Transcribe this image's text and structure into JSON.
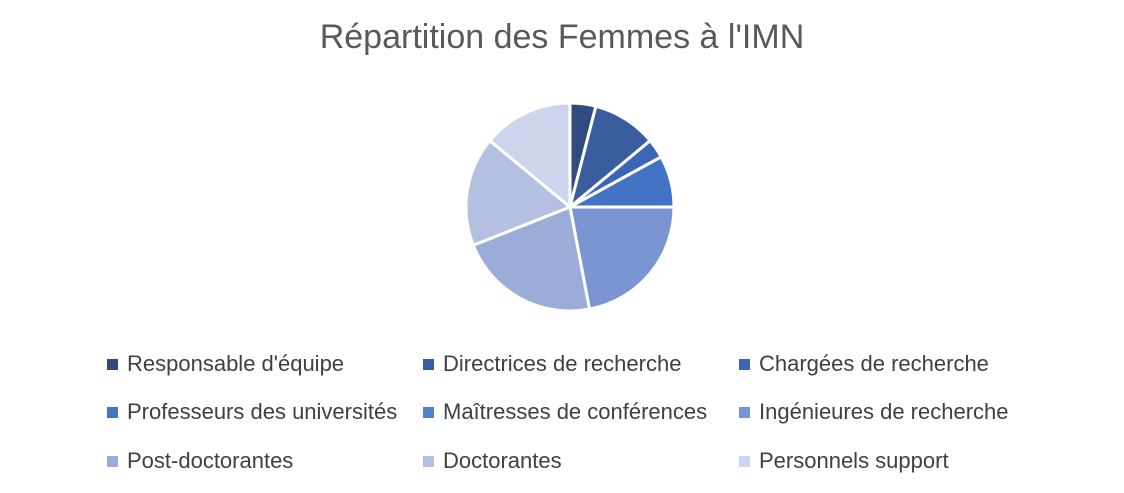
{
  "chart_data": {
    "type": "pie",
    "title": "Répartition des Femmes à l'IMN",
    "categories": [
      "Responsable d'équipe",
      "Directrices de recherche",
      "Chargées de recherche",
      "Professeurs des universités",
      "Maîtresses de conférences",
      "Ingénieures de recherche",
      "Post-doctorantes",
      "Doctorantes",
      "Personnels support"
    ],
    "values": [
      4,
      10,
      3,
      8,
      0,
      22,
      22,
      17,
      14
    ],
    "colors": [
      "#2F4B80",
      "#3A5DA0",
      "#3B66B8",
      "#4472C4",
      "#5580CC",
      "#7A95D1",
      "#9BACD9",
      "#B3C0E2",
      "#CDD4EB"
    ],
    "legend_position": "bottom"
  }
}
